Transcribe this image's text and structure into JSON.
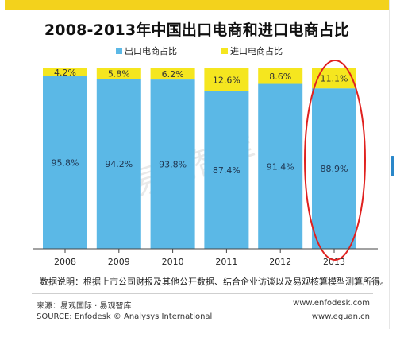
{
  "colors": {
    "export": "#5bb8e6",
    "import": "#f5e61f",
    "highlight": "#e0211f",
    "accent_bar": "#f3d21c"
  },
  "chart_data": {
    "type": "bar",
    "stacked": true,
    "title": "2008-2013年中国出口电商和进口电商占比",
    "categories": [
      "2008",
      "2009",
      "2010",
      "2011",
      "2012",
      "2013"
    ],
    "series": [
      {
        "name": "出口电商占比",
        "values": [
          95.8,
          94.2,
          93.8,
          87.4,
          91.4,
          88.9
        ],
        "labels": [
          "95.8%",
          "94.2%",
          "93.8%",
          "87.4%",
          "91.4%",
          "88.9%"
        ]
      },
      {
        "name": "进口电商占比",
        "values": [
          4.2,
          5.8,
          6.2,
          12.6,
          8.6,
          11.1
        ],
        "labels": [
          "4.2%",
          "5.8%",
          "6.2%",
          "12.6%",
          "8.6%",
          "11.1%"
        ]
      }
    ],
    "ylim": [
      0,
      100
    ],
    "unit": "%",
    "grid": false,
    "legend": "top-center",
    "highlighted_category": "2013"
  },
  "watermark": "易观智库",
  "note": "数据说明：根据上市公司财报及其他公开数据、结合企业访谈以及易观核算模型测算所得。",
  "footer": {
    "source_cn": "来源：易观国际 · 易观智库",
    "source_en": "SOURCE: Enfodesk © Analysys International",
    "url1": "www.enfodesk.com",
    "url2": "www.eguan.cn"
  }
}
